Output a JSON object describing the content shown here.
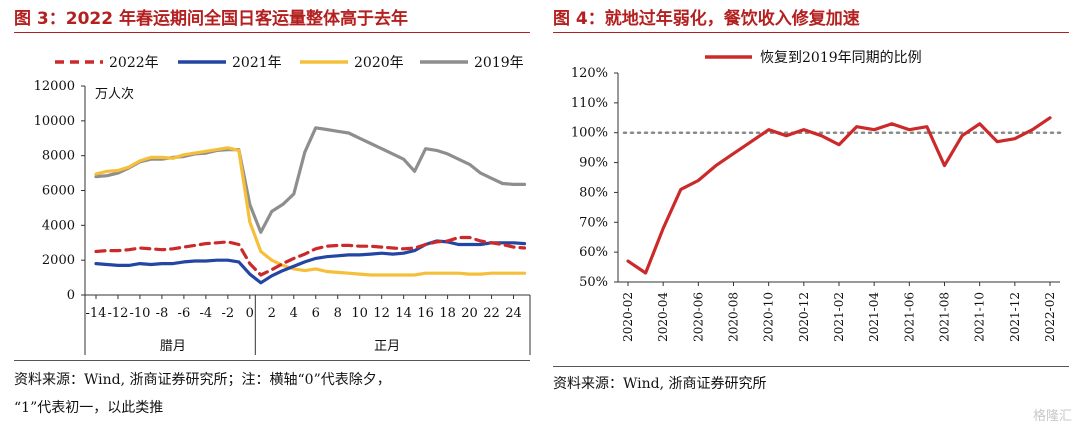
{
  "left": {
    "title": "图 3：2022 年春运期间全国日客运量整体高于去年",
    "note_line1": "资料来源：Wind, 浙商证券研究所；注：横轴“0”代表除夕，",
    "note_line2": "“1”代表初一，以此类推"
  },
  "right": {
    "title": "图 4：就地过年弱化，餐饮收入修复加速",
    "note": "资料来源：Wind, 浙商证券研究所"
  },
  "watermark": "格隆汇",
  "chart_data": [
    {
      "type": "line",
      "unit_label": "万人次",
      "x": [
        -14,
        -13,
        -12,
        -11,
        -10,
        -9,
        -8,
        -7,
        -6,
        -5,
        -4,
        -3,
        -2,
        -1,
        0,
        1,
        2,
        3,
        4,
        5,
        6,
        7,
        8,
        9,
        10,
        11,
        12,
        13,
        14,
        15,
        16,
        17,
        18,
        19,
        20,
        21,
        22,
        23,
        24,
        25
      ],
      "x_ticks": [
        -14,
        -12,
        -10,
        -8,
        -6,
        -4,
        -2,
        0,
        2,
        4,
        6,
        8,
        10,
        12,
        14,
        16,
        18,
        20,
        22,
        24
      ],
      "ylim": [
        0,
        12000
      ],
      "y_ticks": [
        0,
        2000,
        4000,
        6000,
        8000,
        10000,
        12000
      ],
      "group_labels": [
        {
          "label": "腊月",
          "x": -7
        },
        {
          "label": "正月",
          "x": 12.5
        }
      ],
      "series": [
        {
          "name": "2022年",
          "color": "#cc2a2a",
          "dash": true,
          "values": [
            2500,
            2550,
            2550,
            2600,
            2700,
            2650,
            2600,
            2650,
            2750,
            2850,
            2950,
            3000,
            3050,
            2900,
            1800,
            1150,
            1450,
            1800,
            2100,
            2350,
            2650,
            2800,
            2850,
            2850,
            2800,
            2800,
            2750,
            2700,
            2650,
            2700,
            2900,
            3050,
            3100,
            3300,
            3300,
            3100,
            3000,
            2900,
            2750,
            2700
          ]
        },
        {
          "name": "2021年",
          "color": "#2346a4",
          "dash": false,
          "values": [
            1800,
            1750,
            1700,
            1700,
            1800,
            1750,
            1800,
            1800,
            1900,
            1950,
            1950,
            2000,
            2000,
            1900,
            1200,
            700,
            1100,
            1400,
            1650,
            1900,
            2100,
            2200,
            2250,
            2300,
            2300,
            2350,
            2400,
            2350,
            2400,
            2550,
            2900,
            3100,
            3050,
            2900,
            2900,
            2900,
            3000,
            3000,
            3000,
            2950
          ]
        },
        {
          "name": "2020年",
          "color": "#f5bf3a",
          "dash": false,
          "values": [
            6950,
            7100,
            7150,
            7350,
            7700,
            7900,
            7900,
            7850,
            8050,
            8150,
            8250,
            8350,
            8450,
            8300,
            4200,
            2500,
            2000,
            1700,
            1500,
            1400,
            1500,
            1350,
            1300,
            1250,
            1200,
            1150,
            1150,
            1150,
            1150,
            1150,
            1250,
            1250,
            1250,
            1250,
            1200,
            1200,
            1250,
            1250,
            1250,
            1250
          ]
        },
        {
          "name": "2019年",
          "color": "#8e8e8e",
          "dash": false,
          "values": [
            6800,
            6850,
            7000,
            7300,
            7650,
            7800,
            7800,
            7900,
            7950,
            8100,
            8150,
            8300,
            8350,
            8350,
            5200,
            3600,
            4800,
            5200,
            5800,
            8200,
            9600,
            9500,
            9400,
            9300,
            9000,
            8700,
            8400,
            8100,
            7800,
            7100,
            8400,
            8300,
            8100,
            7800,
            7500,
            7000,
            6700,
            6400,
            6350,
            6350
          ]
        }
      ]
    },
    {
      "type": "line",
      "categories": [
        "2020-02",
        "2020-03",
        "2020-04",
        "2020-05",
        "2020-06",
        "2020-07",
        "2020-08",
        "2020-09",
        "2020-10",
        "2020-11",
        "2020-12",
        "2021-01",
        "2021-02",
        "2021-03",
        "2021-04",
        "2021-05",
        "2021-06",
        "2021-07",
        "2021-08",
        "2021-09",
        "2021-10",
        "2021-11",
        "2021-12",
        "2022-01",
        "2022-02"
      ],
      "x_tick_labels": [
        "2020-02",
        "2020-04",
        "2020-06",
        "2020-08",
        "2020-10",
        "2020-12",
        "2021-02",
        "2021-04",
        "2021-06",
        "2021-08",
        "2021-10",
        "2021-12",
        "2022-02"
      ],
      "ylim": [
        50,
        120
      ],
      "y_ticks": [
        50,
        60,
        70,
        80,
        90,
        100,
        110,
        120
      ],
      "y_tick_suffix": "%",
      "reference_line": 100,
      "series": [
        {
          "name": "恢复到2019年同期的比例",
          "color": "#cc2a2a",
          "values": [
            57,
            53,
            68,
            81,
            84,
            89,
            93,
            97,
            101,
            99,
            101,
            99,
            96,
            102,
            101,
            103,
            101,
            102,
            89,
            99,
            103,
            97,
            98,
            101,
            105
          ]
        }
      ]
    }
  ]
}
